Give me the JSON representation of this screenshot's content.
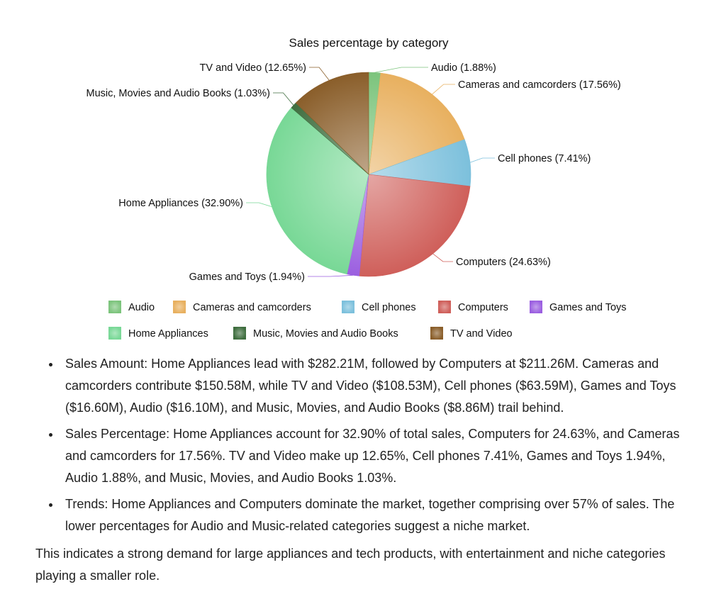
{
  "chart_data": {
    "type": "pie",
    "title": "Sales percentage by category",
    "categories": [
      "Audio",
      "Cameras and camcorders",
      "Cell phones",
      "Computers",
      "Games and Toys",
      "Home Appliances",
      "Music, Movies and Audio Books",
      "TV and Video"
    ],
    "values": [
      1.88,
      17.56,
      7.41,
      24.63,
      1.94,
      32.9,
      1.03,
      12.65
    ],
    "slice_labels": [
      "Audio (1.88%)",
      "Cameras and camcorders  (17.56%)",
      "Cell phones (7.41%)",
      "Computers (24.63%)",
      "Games and Toys (1.94%)",
      "Home Appliances (32.90%)",
      "Music, Movies and Audio Books (1.03%)",
      "TV and Video (12.65%)"
    ],
    "colors": [
      "#7cc47c",
      "#e8b05f",
      "#7cc0dc",
      "#cf5f5a",
      "#9b5fe0",
      "#78d896",
      "#3f6e3f",
      "#8a5e2a"
    ],
    "legend_position": "bottom"
  },
  "bullets": [
    "Sales Amount: Home Appliances lead with $282.21M, followed by Computers at $211.26M. Cameras and camcorders contribute $150.58M, while TV and Video ($108.53M), Cell phones ($63.59M), Games and Toys ($16.60M), Audio ($16.10M), and Music, Movies, and Audio Books ($8.86M) trail behind.",
    "Sales Percentage: Home Appliances account for 32.90% of total sales, Computers for 24.63%, and Cameras and camcorders for 17.56%. TV and Video make up 12.65%, Cell phones 7.41%, Games and Toys 1.94%, Audio 1.88%, and Music, Movies, and Audio Books 1.03%.",
    "Trends: Home Appliances and Computers dominate the market, together comprising over 57% of sales. The lower percentages for Audio and Music-related categories suggest a niche market."
  ],
  "summary": "This indicates a strong demand for large appliances and tech products, with entertainment and niche categories playing a smaller role."
}
